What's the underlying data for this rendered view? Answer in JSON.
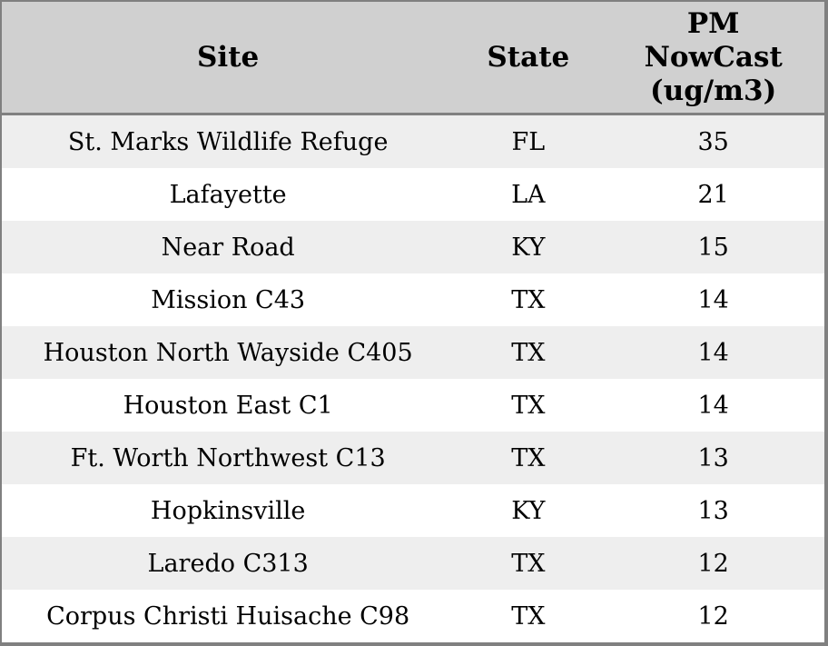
{
  "colors": {
    "header_bg": "#d0d0d0",
    "row_stripe_bg": "#eeeeee",
    "row_bg": "#ffffff",
    "border": "#808080",
    "text": "#000000"
  },
  "table": {
    "columns": [
      {
        "id": "site",
        "label": "Site"
      },
      {
        "id": "state",
        "label": "State"
      },
      {
        "id": "pm_nowcast",
        "label": "PM NowCast (ug/m3)",
        "label_lines": [
          "PM",
          "NowCast",
          "(ug/m3)"
        ]
      }
    ],
    "rows": [
      {
        "site": "St. Marks Wildlife Refuge",
        "state": "FL",
        "pm_nowcast": "35"
      },
      {
        "site": "Lafayette",
        "state": "LA",
        "pm_nowcast": "21"
      },
      {
        "site": "Near Road",
        "state": "KY",
        "pm_nowcast": "15"
      },
      {
        "site": "Mission C43",
        "state": "TX",
        "pm_nowcast": "14"
      },
      {
        "site": "Houston North Wayside C405",
        "state": "TX",
        "pm_nowcast": "14"
      },
      {
        "site": "Houston East C1",
        "state": "TX",
        "pm_nowcast": "14"
      },
      {
        "site": "Ft. Worth Northwest C13",
        "state": "TX",
        "pm_nowcast": "13"
      },
      {
        "site": "Hopkinsville",
        "state": "KY",
        "pm_nowcast": "13"
      },
      {
        "site": "Laredo C313",
        "state": "TX",
        "pm_nowcast": "12"
      },
      {
        "site": "Corpus Christi Huisache C98",
        "state": "TX",
        "pm_nowcast": "12"
      }
    ]
  },
  "chart_data": {
    "type": "table",
    "title": "",
    "columns": [
      "Site",
      "State",
      "PM NowCast (ug/m3)"
    ],
    "rows": [
      [
        "St. Marks Wildlife Refuge",
        "FL",
        35
      ],
      [
        "Lafayette",
        "LA",
        21
      ],
      [
        "Near Road",
        "KY",
        15
      ],
      [
        "Mission C43",
        "TX",
        14
      ],
      [
        "Houston North Wayside C405",
        "TX",
        14
      ],
      [
        "Houston East C1",
        "TX",
        14
      ],
      [
        "Ft. Worth Northwest C13",
        "TX",
        13
      ],
      [
        "Hopkinsville",
        "KY",
        13
      ],
      [
        "Laredo C313",
        "TX",
        12
      ],
      [
        "Corpus Christi Huisache C98",
        "TX",
        12
      ]
    ],
    "layout_hints": {
      "header_background": "#d0d0d0",
      "stripe_background": "#eeeeee",
      "value_sort": "descending"
    }
  }
}
